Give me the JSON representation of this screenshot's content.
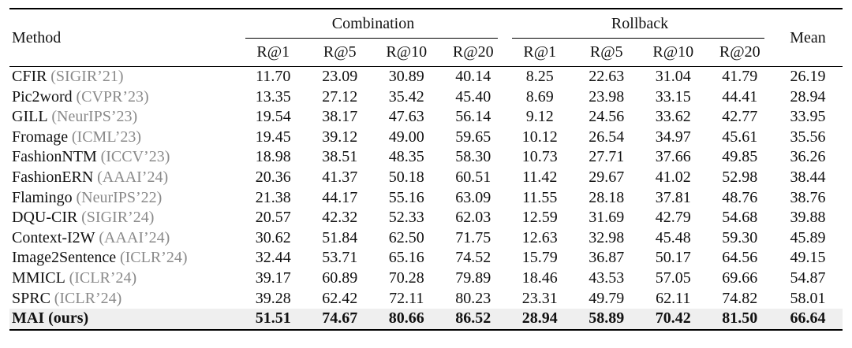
{
  "table": {
    "method_header": "Method",
    "group_headers": [
      {
        "label": "Combination"
      },
      {
        "label": "Rollback"
      }
    ],
    "mean_header": "Mean",
    "sub_headers": [
      "R@1",
      "R@5",
      "R@10",
      "R@20",
      "R@1",
      "R@5",
      "R@10",
      "R@20"
    ],
    "rows": [
      {
        "method": "CFIR",
        "venue": "(SIGIR’21)",
        "values": [
          "11.70",
          "23.09",
          "30.89",
          "40.14",
          "8.25",
          "22.63",
          "31.04",
          "41.79",
          "26.19"
        ],
        "highlight": false
      },
      {
        "method": "Pic2word",
        "venue": "(CVPR’23)",
        "values": [
          "13.35",
          "27.12",
          "35.42",
          "45.40",
          "8.69",
          "23.98",
          "33.15",
          "44.41",
          "28.94"
        ],
        "highlight": false
      },
      {
        "method": "GILL",
        "venue": "(NeurIPS’23)",
        "values": [
          "19.54",
          "38.17",
          "47.63",
          "56.14",
          "9.12",
          "24.56",
          "33.62",
          "42.77",
          "33.95"
        ],
        "highlight": false
      },
      {
        "method": "Fromage",
        "venue": "(ICML’23)",
        "values": [
          "19.45",
          "39.12",
          "49.00",
          "59.65",
          "10.12",
          "26.54",
          "34.97",
          "45.61",
          "35.56"
        ],
        "highlight": false
      },
      {
        "method": "FashionNTM",
        "venue": "(ICCV’23)",
        "values": [
          "18.98",
          "38.51",
          "48.35",
          "58.30",
          "10.73",
          "27.71",
          "37.66",
          "49.85",
          "36.26"
        ],
        "highlight": false
      },
      {
        "method": "FashionERN",
        "venue": "(AAAI’24)",
        "values": [
          "20.36",
          "41.37",
          "50.18",
          "60.51",
          "11.42",
          "29.67",
          "41.02",
          "52.98",
          "38.44"
        ],
        "highlight": false
      },
      {
        "method": "Flamingo",
        "venue": "(NeurIPS’22)",
        "values": [
          "21.38",
          "44.17",
          "55.16",
          "63.09",
          "11.55",
          "28.18",
          "37.81",
          "48.76",
          "38.76"
        ],
        "highlight": false
      },
      {
        "method": "DQU-CIR",
        "venue": "(SIGIR’24)",
        "values": [
          "20.57",
          "42.32",
          "52.33",
          "62.03",
          "12.59",
          "31.69",
          "42.79",
          "54.68",
          "39.88"
        ],
        "highlight": false
      },
      {
        "method": "Context-I2W",
        "venue": "(AAAI’24)",
        "values": [
          "30.62",
          "51.84",
          "62.50",
          "71.75",
          "12.63",
          "32.98",
          "45.48",
          "59.30",
          "45.89"
        ],
        "highlight": false
      },
      {
        "method": "Image2Sentence",
        "venue": "(ICLR’24)",
        "values": [
          "32.44",
          "53.71",
          "65.16",
          "74.52",
          "15.79",
          "36.87",
          "50.17",
          "64.56",
          "49.15"
        ],
        "highlight": false
      },
      {
        "method": "MMICL",
        "venue": "(ICLR’24)",
        "values": [
          "39.17",
          "60.89",
          "70.28",
          "79.89",
          "18.46",
          "43.53",
          "57.05",
          "69.66",
          "54.87"
        ],
        "highlight": false
      },
      {
        "method": "SPRC",
        "venue": "(ICLR’24)",
        "values": [
          "39.28",
          "62.42",
          "72.11",
          "80.23",
          "23.31",
          "49.79",
          "62.11",
          "74.82",
          "58.01"
        ],
        "highlight": false
      },
      {
        "method": "MAI (ours)",
        "venue": "",
        "values": [
          "51.51",
          "74.67",
          "80.66",
          "86.52",
          "28.94",
          "58.89",
          "70.42",
          "81.50",
          "66.64"
        ],
        "highlight": true
      }
    ]
  },
  "colors": {
    "text_color": "#111111",
    "venue_gray": "#8a8a8a",
    "highlight_bg": "#efefef",
    "rule_color": "#000000"
  }
}
